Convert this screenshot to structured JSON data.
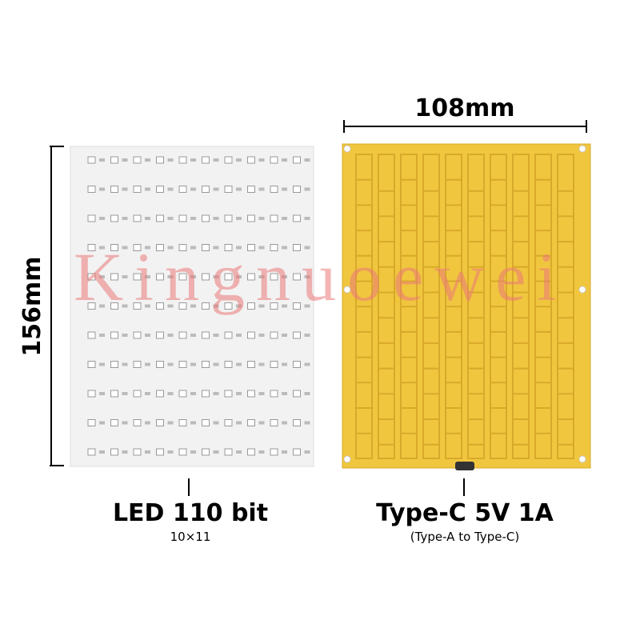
{
  "dimensions": {
    "width": "108mm",
    "height": "156mm"
  },
  "watermark": "Kingnuoewei",
  "left_panel": {
    "title": "LED 110 bit",
    "subtitle": "10×11"
  },
  "right_panel": {
    "title": "Type-C 5V 1A",
    "subtitle": "(Type-A to Type-C)"
  }
}
